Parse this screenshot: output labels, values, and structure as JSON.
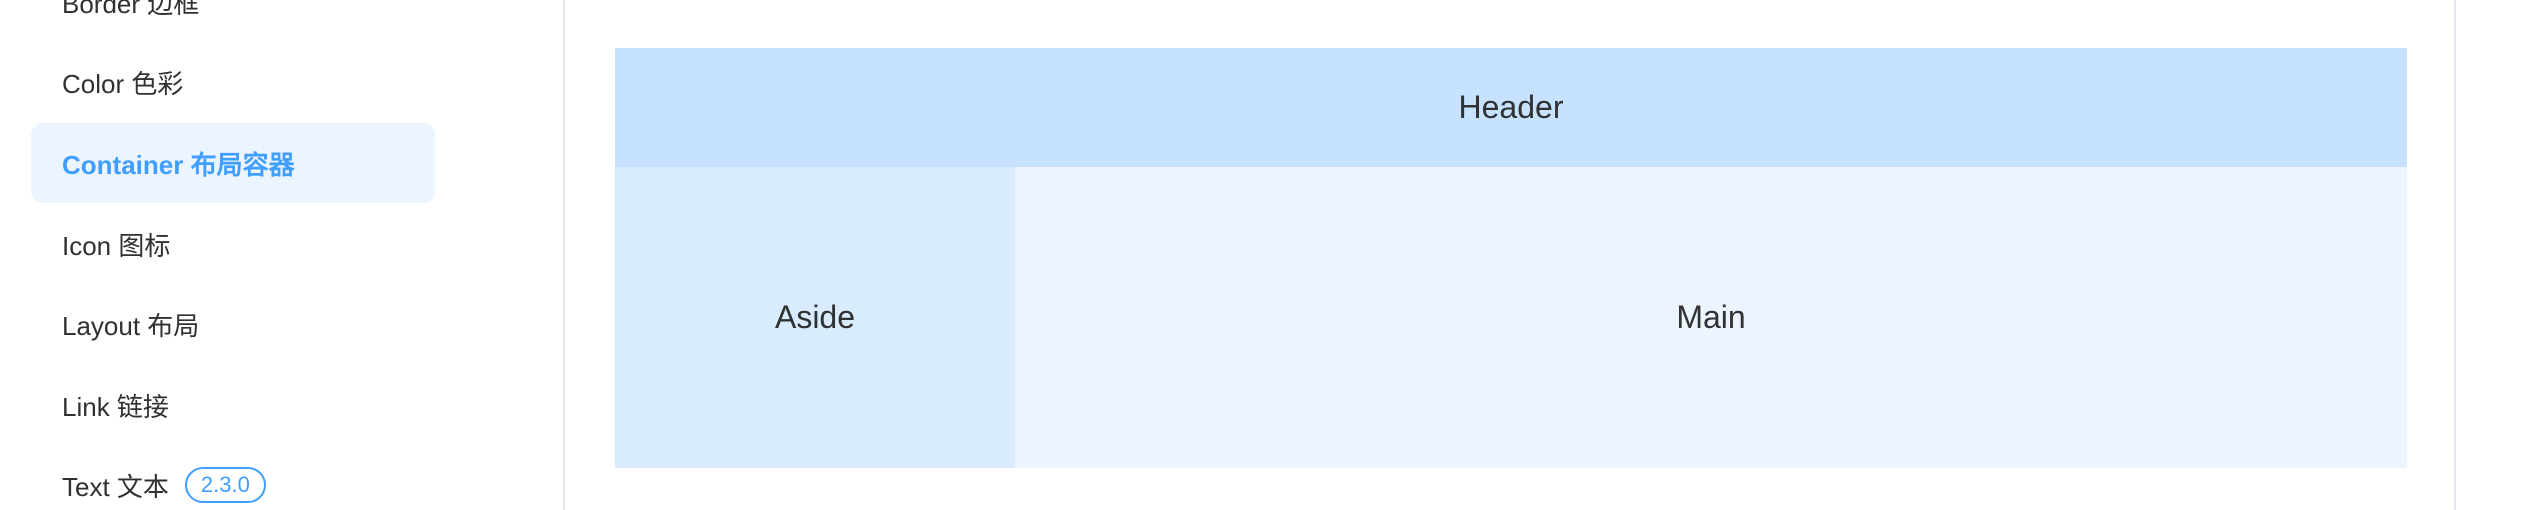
{
  "sidebar": {
    "items": [
      {
        "label": "Border 边框"
      },
      {
        "label": "Color 色彩"
      },
      {
        "label": "Container 布局容器",
        "active": true
      },
      {
        "label": "Icon 图标"
      },
      {
        "label": "Layout 布局"
      },
      {
        "label": "Link 链接"
      },
      {
        "label": "Text 文本",
        "badge": "2.3.0"
      }
    ]
  },
  "demo": {
    "header": "Header",
    "aside": "Aside",
    "main": "Main"
  },
  "colors": {
    "accent": "#409eff",
    "active_bg": "#ecf5ff",
    "header_bg": "#c6e2ff",
    "aside_bg": "#d9ecff",
    "main_bg": "#ecf5ff"
  }
}
